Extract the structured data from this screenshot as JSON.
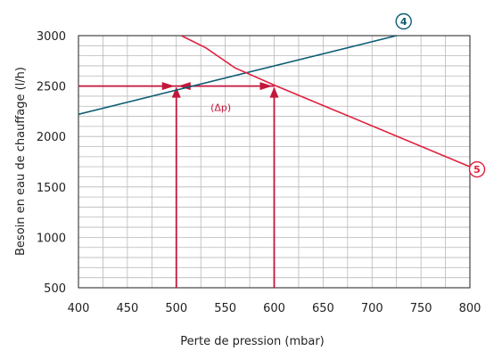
{
  "chart_data": {
    "type": "line",
    "title": "",
    "xlabel": "Perte de pression (mbar)",
    "ylabel": "Besoin en eau de chauffage  (l/h)",
    "xlim": [
      400,
      800
    ],
    "ylim": [
      500,
      3000
    ],
    "x_ticks": [
      "400",
      "450",
      "500",
      "550",
      "600",
      "650",
      "700",
      "750",
      "800"
    ],
    "y_ticks": [
      "500",
      "1000",
      "1500",
      "2000",
      "2500",
      "3000"
    ],
    "highlight_x_ticks": [
      "500",
      "600"
    ],
    "grid": true,
    "series": [
      {
        "name": "4",
        "color": "#0d5c73",
        "x": [
          400,
          725
        ],
        "y": [
          2220,
          3000
        ]
      },
      {
        "name": "5",
        "color": "#e0203e",
        "x": [
          505,
          530,
          560,
          600,
          800
        ],
        "y": [
          3000,
          2880,
          2680,
          2510,
          1700
        ]
      }
    ],
    "guides": {
      "color": "#c4163a",
      "level_y": 2500,
      "markers_x": [
        500,
        600
      ],
      "delta_label": "(Δp)"
    }
  }
}
